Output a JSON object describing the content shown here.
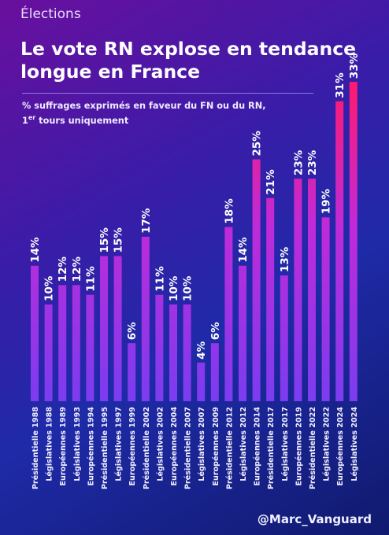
{
  "kicker": "Élections",
  "title": "Le vote RN explose en tendance longue en France",
  "subtitle_main": "% suffrages exprimés en faveur du FN ou du RN, 1",
  "subtitle_sup": "er",
  "subtitle_end": " tours uniquement",
  "handle": "@Marc_Vanguard",
  "colors": {
    "bar_low": "#7b3cf0",
    "bar_high": "#ff1a6e",
    "label": "#ffffff"
  },
  "chart_data": {
    "type": "bar",
    "categories": [
      "Présidentielle 1988",
      "Législatives 1988",
      "Européennes 1989",
      "Législatives 1993",
      "Européennes 1994",
      "Présidentielle 1995",
      "Législatives 1997",
      "Européennes 1999",
      "Présidentielle 2002",
      "Législatives 2002",
      "Européennes 2004",
      "Présidentielle 2007",
      "Législatives 2007",
      "Européennes 2009",
      "Présidentielle 2012",
      "Législatives 2012",
      "Européennes 2014",
      "Présidentielle 2017",
      "Législatives 2017",
      "Européennes 2019",
      "Présidentielle 2022",
      "Législatives 2022",
      "Européennes 2024",
      "Législatives 2024"
    ],
    "values": [
      14,
      10,
      12,
      12,
      11,
      15,
      15,
      6,
      17,
      11,
      10,
      10,
      4,
      6,
      18,
      14,
      25,
      21,
      13,
      23,
      23,
      19,
      31,
      33
    ],
    "value_labels": [
      "14%",
      "10%",
      "12%",
      "12%",
      "11%",
      "15%",
      "15%",
      "6%",
      "17%",
      "11%",
      "10%",
      "10%",
      "4%",
      "6%",
      "18%",
      "14%",
      "25%",
      "21%",
      "13%",
      "23%",
      "23%",
      "19%",
      "31%",
      "33%"
    ],
    "unit": "%",
    "grid": false,
    "legend": "none"
  }
}
